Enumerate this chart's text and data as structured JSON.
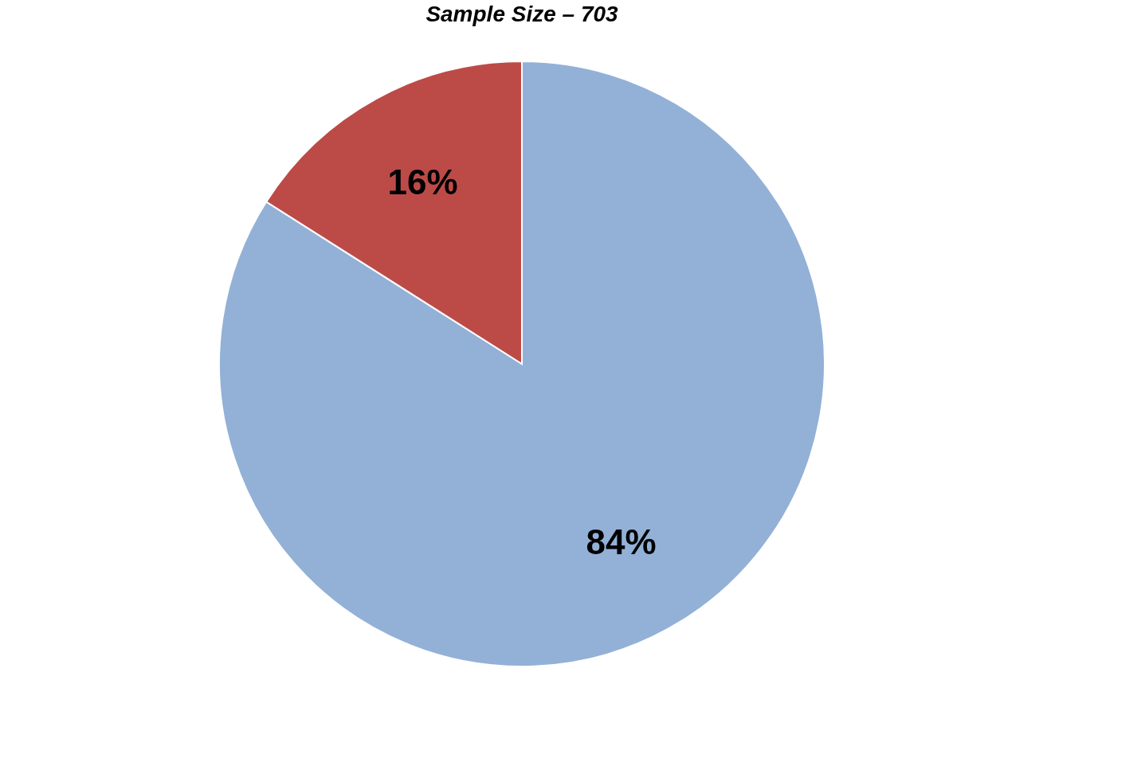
{
  "chart_data": {
    "type": "pie",
    "title": "Sample Size – 703",
    "categories": [
      null,
      null
    ],
    "values": [
      84,
      16
    ],
    "colors": [
      "#93b1d7",
      "#bc4b48"
    ],
    "value_labels": [
      "84%",
      "16%"
    ]
  }
}
